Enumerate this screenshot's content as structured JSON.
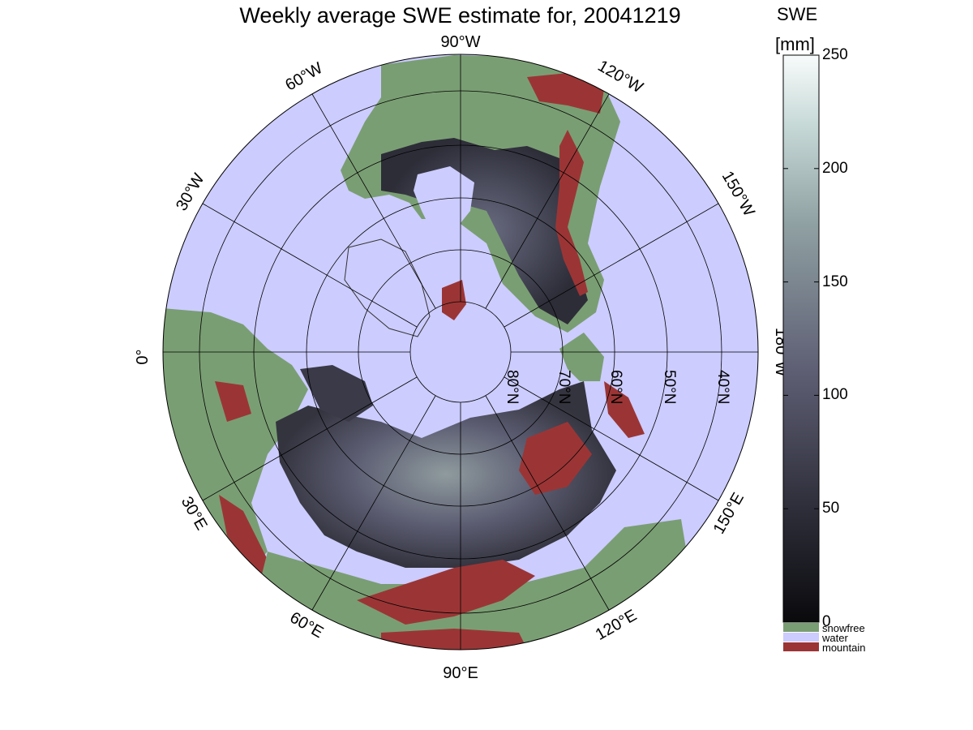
{
  "title": "Weekly average SWE estimate for, 20041219",
  "colorbar": {
    "title_line1": "SWE",
    "title_line2": "[mm]",
    "ticks": [
      "0",
      "50",
      "100",
      "150",
      "200",
      "250"
    ],
    "range": [
      0,
      250
    ],
    "legend": [
      {
        "label": "snowfree",
        "color": "#7a9e73"
      },
      {
        "label": "water",
        "color": "#ccccff"
      },
      {
        "label": "mountain",
        "color": "#9b3535"
      }
    ]
  },
  "map": {
    "projection": "north polar stereographic",
    "colors": {
      "snowfree": "#7a9e73",
      "water": "#ccccff",
      "mountain": "#9b3535",
      "swe_low": "#2a2a36",
      "swe_mid": "#5f6075",
      "swe_high": "#9aa8a8"
    },
    "longitude_labels": [
      "90°W",
      "60°W",
      "120°W",
      "30°W",
      "150°W",
      "0°",
      "180°W",
      "30°E",
      "150°E",
      "60°E",
      "120°E",
      "90°E"
    ],
    "latitude_labels": [
      "80°N",
      "70°N",
      "60°N",
      "50°N",
      "40°N"
    ]
  }
}
